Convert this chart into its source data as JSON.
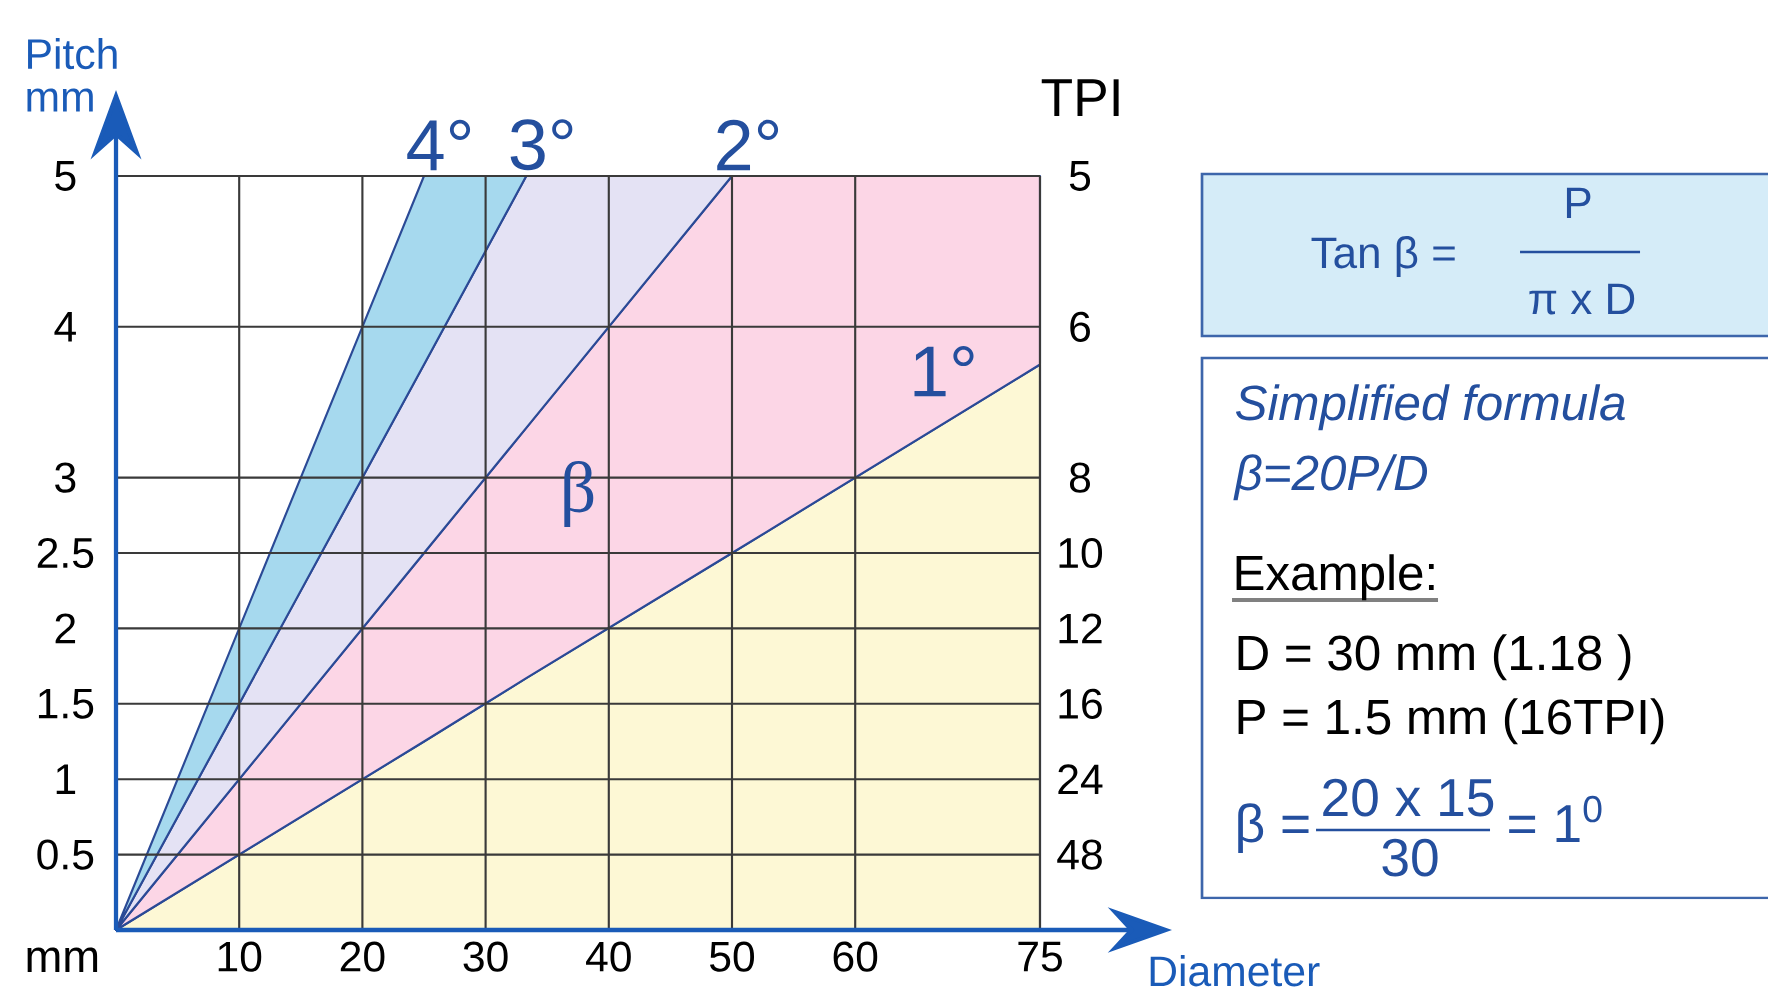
{
  "chart_data": {
    "type": "area",
    "xlabel": "Diameter",
    "ylabel": "Pitch mm",
    "xlim": [
      0,
      75
    ],
    "ylim": [
      0,
      5
    ],
    "xticks": [
      10,
      20,
      30,
      40,
      50,
      60,
      75
    ],
    "yticks": [
      0.5,
      1,
      1.5,
      2,
      2.5,
      3,
      4,
      5
    ],
    "grid": true,
    "stacked": true,
    "series": [
      {
        "color": "#fdf8d5",
        "x": [
          0,
          25,
          33.3,
          50,
          75
        ],
        "values": [
          0,
          1.25,
          1.67,
          2.5,
          3.75
        ]
      },
      {
        "color": "#fcd6e6",
        "x": [
          0,
          25,
          33.3,
          50,
          75
        ],
        "values": [
          0,
          1.25,
          1.66,
          2.5,
          1.25
        ]
      },
      {
        "color": "#e4e2f4",
        "x": [
          0,
          25,
          33.3,
          50
        ],
        "values": [
          0,
          1.25,
          1.67,
          0
        ]
      },
      {
        "color": "#a6d9ee",
        "x": [
          0,
          25,
          33.3
        ],
        "values": [
          0,
          1.25,
          0
        ]
      }
    ],
    "annotations": [
      {
        "text": "4°",
        "x": 25,
        "y": 5
      },
      {
        "text": "3°",
        "x": 33.3,
        "y": 5
      },
      {
        "text": "2°",
        "x": 50,
        "y": 5
      },
      {
        "text": "1°",
        "x": 70,
        "y": 3.5
      },
      "mm",
      "TPI",
      "5",
      "6",
      "8",
      "10",
      "12",
      "16",
      "24",
      "48",
      "β",
      "Tan β =",
      "P",
      "π x D",
      "Simplified formula",
      "β=20P/D",
      "Example:",
      "D = 30 mm (1.18 )",
      "P = 1.5 mm (16TPI)",
      "β =",
      "20 x 15",
      "30",
      "= 1$^{0}$"
    ]
  }
}
